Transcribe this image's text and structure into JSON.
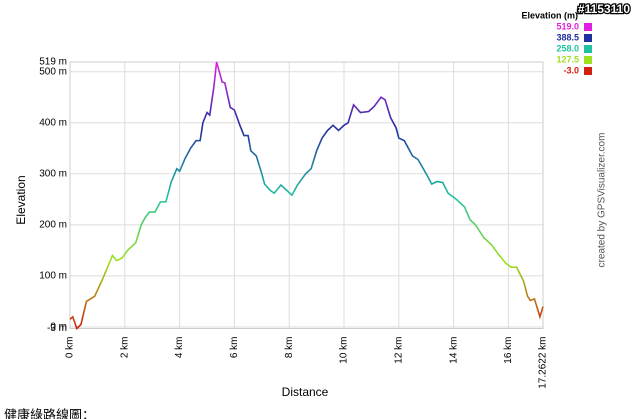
{
  "chart_data": {
    "type": "line",
    "y_label": "Elevation",
    "x_label": "Distance",
    "legend_title": "Elevation (m)",
    "watermark": "#1153110",
    "credit": "created by GPSVisualizer.com",
    "caption": "健康綠路線圖：",
    "color_scale": [
      {
        "value": 519.0,
        "label": "519.0",
        "color": "#e020e0"
      },
      {
        "value": 388.5,
        "label": "388.5",
        "color": "#2030a0"
      },
      {
        "value": 258.0,
        "label": "258.0",
        "color": "#20c0a0"
      },
      {
        "value": 127.5,
        "label": "127.5",
        "color": "#a0e020"
      },
      {
        "value": -3.0,
        "label": "-3.0",
        "color": "#d02010"
      }
    ],
    "x": [
      0,
      0.1,
      0.25,
      0.4,
      0.6,
      0.9,
      1.2,
      1.55,
      1.7,
      1.9,
      2.1,
      2.4,
      2.6,
      2.75,
      2.9,
      3.1,
      3.3,
      3.5,
      3.7,
      3.9,
      4.0,
      4.2,
      4.4,
      4.6,
      4.75,
      4.85,
      5.0,
      5.1,
      5.25,
      5.35,
      5.45,
      5.55,
      5.65,
      5.85,
      6.0,
      6.2,
      6.35,
      6.5,
      6.6,
      6.8,
      7.0,
      7.1,
      7.3,
      7.45,
      7.7,
      7.9,
      8.1,
      8.3,
      8.6,
      8.8,
      9.0,
      9.2,
      9.4,
      9.6,
      9.8,
      10.0,
      10.15,
      10.35,
      10.6,
      10.9,
      11.1,
      11.35,
      11.5,
      11.7,
      11.9,
      12.0,
      12.2,
      12.5,
      12.7,
      13.0,
      13.2,
      13.4,
      13.6,
      13.8,
      14.1,
      14.4,
      14.6,
      14.8,
      15.1,
      15.4,
      15.6,
      15.9,
      16.1,
      16.3,
      16.55,
      16.7,
      16.8,
      16.95,
      17.15,
      17.2622
    ],
    "values": [
      15,
      20,
      -3,
      5,
      50,
      60,
      95,
      140,
      130,
      135,
      150,
      165,
      200,
      215,
      225,
      225,
      245,
      245,
      285,
      310,
      305,
      330,
      350,
      365,
      365,
      400,
      420,
      415,
      470,
      519,
      500,
      480,
      478,
      430,
      425,
      395,
      375,
      375,
      345,
      335,
      300,
      280,
      268,
      262,
      278,
      268,
      258,
      278,
      300,
      310,
      345,
      370,
      385,
      395,
      385,
      395,
      400,
      435,
      420,
      422,
      432,
      450,
      445,
      410,
      390,
      370,
      365,
      335,
      328,
      300,
      280,
      285,
      283,
      262,
      250,
      235,
      210,
      200,
      175,
      160,
      145,
      125,
      117,
      117,
      90,
      60,
      52,
      55,
      20,
      40
    ],
    "xlim": [
      0,
      17.2622
    ],
    "ylim": [
      -3,
      519
    ],
    "xticks": [
      {
        "value": 0,
        "label": "0 km"
      },
      {
        "value": 2,
        "label": "2 km"
      },
      {
        "value": 4,
        "label": "4 km"
      },
      {
        "value": 6,
        "label": "6 km"
      },
      {
        "value": 8,
        "label": "8 km"
      },
      {
        "value": 10,
        "label": "10 km"
      },
      {
        "value": 12,
        "label": "12 km"
      },
      {
        "value": 14,
        "label": "14 km"
      },
      {
        "value": 16,
        "label": "16 km"
      },
      {
        "value": 17.2622,
        "label": "17.2622 km"
      }
    ],
    "yticks": [
      {
        "value": -3,
        "label": "-3 m"
      },
      {
        "value": 0,
        "label": "0 m"
      },
      {
        "value": 100,
        "label": "100 m"
      },
      {
        "value": 200,
        "label": "200 m"
      },
      {
        "value": 300,
        "label": "300 m"
      },
      {
        "value": 400,
        "label": "400 m"
      },
      {
        "value": 500,
        "label": "500 m"
      },
      {
        "value": 519,
        "label": "519 m"
      }
    ],
    "grid": true
  }
}
